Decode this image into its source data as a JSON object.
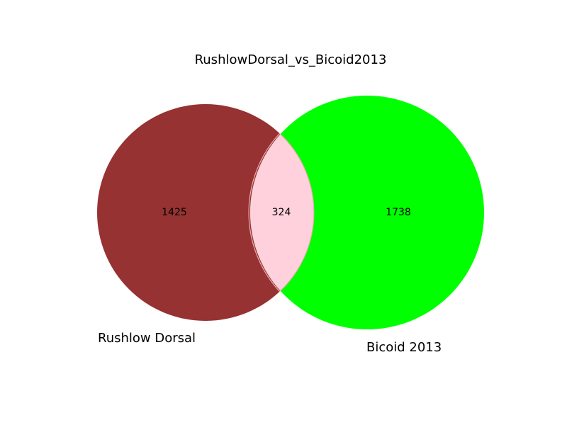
{
  "title": "RushlowDorsal_vs_Bicoid2013",
  "sets": [
    {
      "name": "Rushlow Dorsal",
      "only_count": "1425",
      "color": "#963232"
    },
    {
      "name": "Bicoid 2013",
      "only_count": "1738",
      "color": "#00ff00"
    }
  ],
  "intersection": {
    "count": "324",
    "color": "#ffd1dc"
  }
}
